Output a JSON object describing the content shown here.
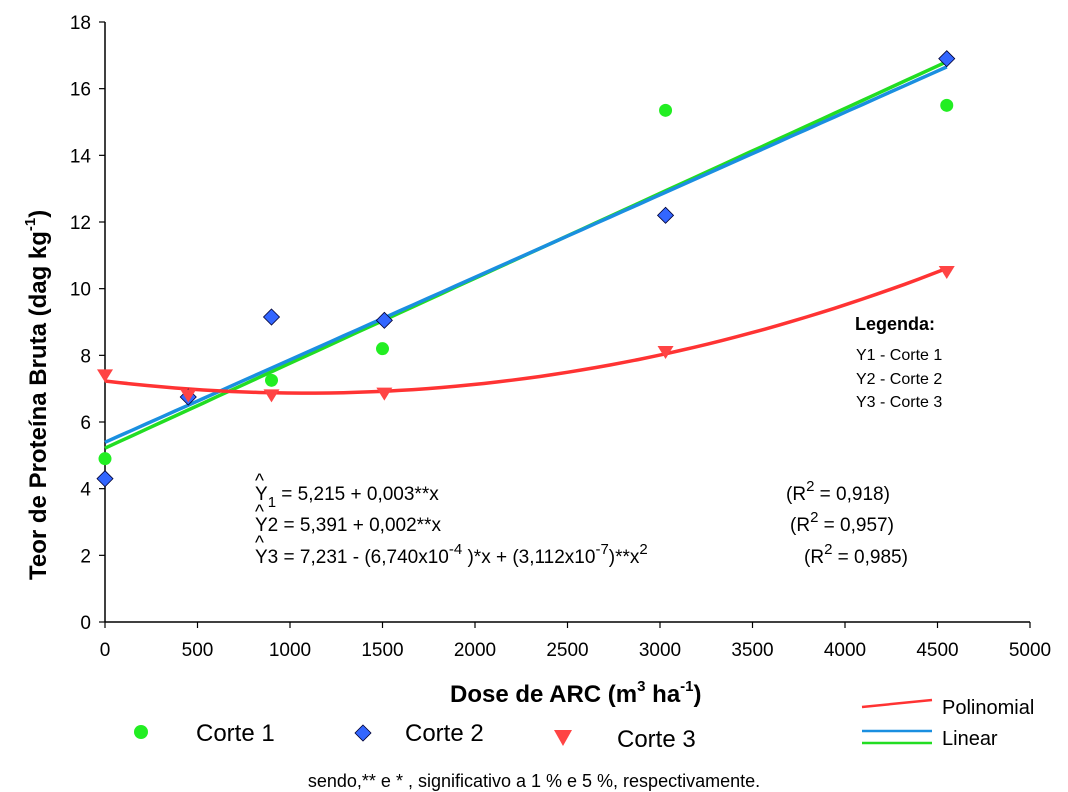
{
  "chart_data": {
    "type": "scatter",
    "xlabel": {
      "main": "Dose de ARC (m",
      "sup1": "3",
      "mid": " ha",
      "sup2": "-1",
      "end": ")"
    },
    "ylabel": {
      "main": "Teor de Proteína Bruta (dag kg",
      "sup": "-1",
      "end": ")"
    },
    "xlim": [
      0,
      5000
    ],
    "ylim": [
      0,
      18
    ],
    "xticks": [
      0,
      500,
      1000,
      1500,
      2000,
      2500,
      3000,
      3500,
      4000,
      4500,
      5000
    ],
    "yticks": [
      0,
      2,
      4,
      6,
      8,
      10,
      12,
      14,
      16,
      18
    ],
    "series": [
      {
        "name": "Corte 1",
        "marker": "circle",
        "color": "#22ee22",
        "points": [
          [
            0,
            4.9
          ],
          [
            900,
            7.25
          ],
          [
            1500,
            8.2
          ],
          [
            3030,
            15.35
          ],
          [
            4550,
            15.5
          ]
        ]
      },
      {
        "name": "Corte 2",
        "marker": "diamond",
        "color": "#3366ff",
        "points": [
          [
            0,
            4.3
          ],
          [
            450,
            6.75
          ],
          [
            900,
            9.15
          ],
          [
            1510,
            9.05
          ],
          [
            3030,
            12.2
          ],
          [
            4550,
            16.9
          ]
        ]
      },
      {
        "name": "Corte 3",
        "marker": "triangle-down",
        "color": "#ff4444",
        "points": [
          [
            0,
            7.4
          ],
          [
            450,
            6.8
          ],
          [
            900,
            6.8
          ],
          [
            1510,
            6.85
          ],
          [
            3030,
            8.1
          ],
          [
            4550,
            10.5
          ]
        ]
      }
    ],
    "fits": [
      {
        "series": "Corte 1",
        "kind": "linear",
        "color": "#22dd22",
        "a": 5.215,
        "b": 0.002548,
        "c": 0,
        "x_range": [
          0,
          4550
        ]
      },
      {
        "series": "Corte 2",
        "kind": "linear",
        "color": "#1a8fe0",
        "a": 5.391,
        "b": 0.002475,
        "c": 0,
        "x_range": [
          0,
          4550
        ]
      },
      {
        "series": "Corte 3",
        "kind": "polinomial",
        "color": "#ff3333",
        "a": 7.231,
        "b": -0.000674,
        "c": 3.112e-07,
        "x_range": [
          0,
          4550
        ]
      }
    ],
    "equations": [
      {
        "hat": "^",
        "y": "Y",
        "sub": "1",
        "text": " = 5,215 + 0,003**x",
        "r2_pre": "(R",
        "r2_sup": "2",
        "r2_post": " = 0,918)"
      },
      {
        "hat": "^",
        "y": "Y2",
        "text": " = 5,391 + 0,002**x",
        "r2_pre": "(R",
        "r2_sup": "2",
        "r2_post": " = 0,957)"
      },
      {
        "hat": "^",
        "y": "Y3",
        "part1": " = 7,231 - (6,740x10",
        "sup1": "-4",
        "part2": " )*x + (3,112x10",
        "sup2": "-7",
        "part3": ")**x",
        "sup3": "2",
        "r2_pre": "(R",
        "r2_sup": "2",
        "r2_post": " = 0,985)"
      }
    ],
    "legend_box": {
      "title": "Legenda:",
      "items": [
        "Y1 - Corte 1",
        "Y2 - Corte 2",
        "Y3 - Corte 3"
      ]
    },
    "series_legend": [
      "Corte 1",
      "Corte 2",
      "Corte 3"
    ],
    "line_legend": [
      {
        "label": "Polinomial",
        "color": "#ff3333"
      },
      {
        "label": "Linear",
        "color": "#1a8fe0",
        "color2": "#22dd22"
      }
    ],
    "footnote": "sendo,** e * , significativo a 1 % e 5 %, respectivamente."
  }
}
